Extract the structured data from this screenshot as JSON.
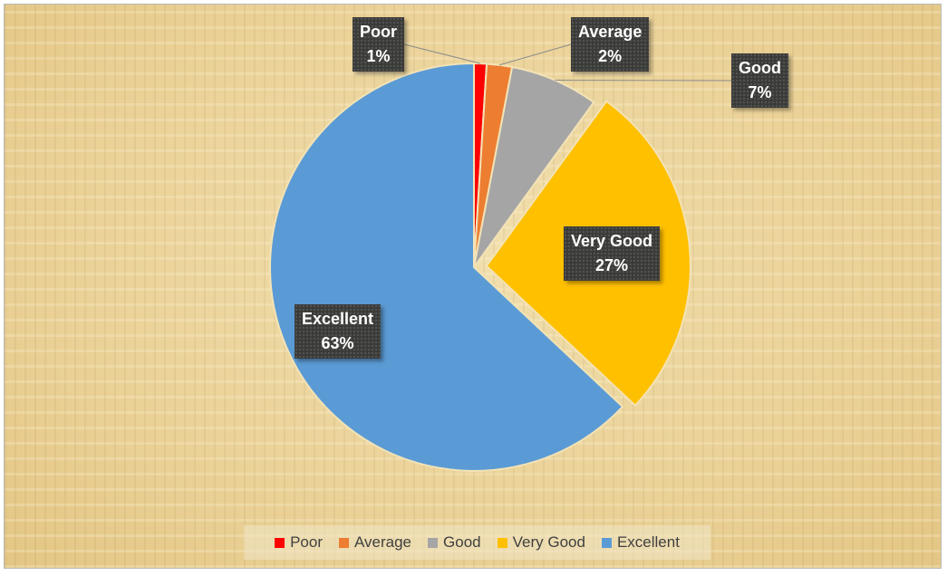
{
  "chart_data": {
    "type": "pie",
    "title": "",
    "categories": [
      "Poor",
      "Average",
      "Good",
      "Very Good",
      "Excellent"
    ],
    "values": [
      1,
      2,
      7,
      27,
      63
    ],
    "value_labels": [
      "1%",
      "2%",
      "7%",
      "27%",
      "63%"
    ],
    "colors": [
      "#ff0000",
      "#ed7d31",
      "#a5a5a5",
      "#ffc000",
      "#5b9bd5"
    ],
    "exploded": [
      "Very Good"
    ],
    "legend_position": "bottom"
  }
}
